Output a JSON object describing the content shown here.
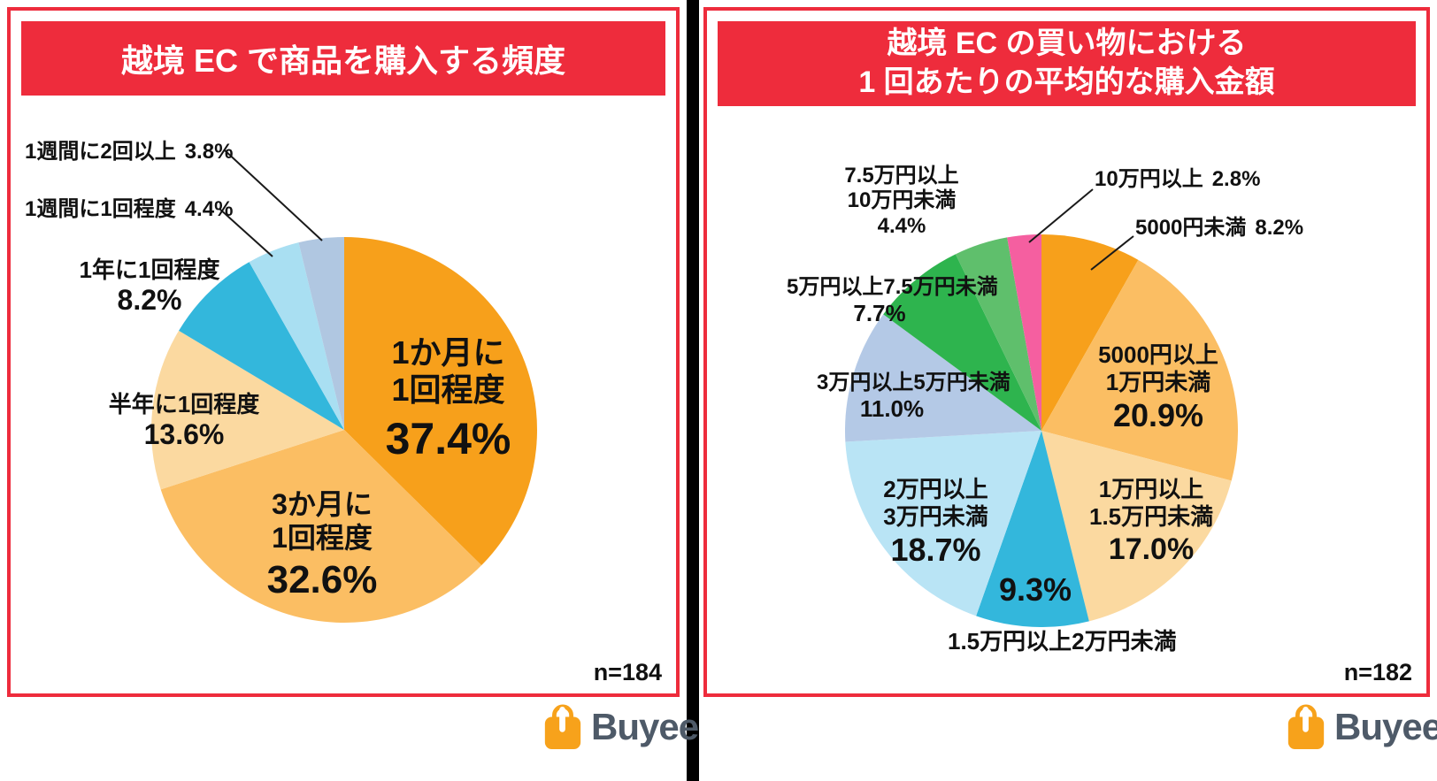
{
  "logo": {
    "text": "Buyee"
  },
  "chart_data": [
    {
      "type": "pie",
      "title": "越境 EC で商品を購入する頻度",
      "n": "n=184",
      "start_angle": "top",
      "direction": "clockwise",
      "slices": [
        {
          "key": "monthly",
          "label": "1か月に1回程度",
          "label_lines": [
            "1か月に",
            "1回程度"
          ],
          "pct": "37.4%",
          "value": 37.4,
          "color": "#F7A01B"
        },
        {
          "key": "quarterly",
          "label": "3か月に1回程度",
          "label_lines": [
            "3か月に",
            "1回程度"
          ],
          "pct": "32.6%",
          "value": 32.6,
          "color": "#FBBE63"
        },
        {
          "key": "half-year",
          "label": "半年に1回程度",
          "pct": "13.6%",
          "value": 13.6,
          "color": "#FBD9A0"
        },
        {
          "key": "yearly",
          "label": "1年に1回程度",
          "pct": "8.2%",
          "value": 8.2,
          "color": "#33B7DC"
        },
        {
          "key": "weekly",
          "label": "1週間に1回程度",
          "pct": "4.4%",
          "value": 4.4,
          "color": "#A9DFF2"
        },
        {
          "key": "twice-weekly",
          "label": "1週間に2回以上",
          "pct": "3.8%",
          "value": 3.8,
          "color": "#B0C7E1"
        }
      ]
    },
    {
      "type": "pie",
      "title": "越境 EC の買い物における 1 回あたりの平均的な購入金額",
      "title_lines": [
        "越境 EC の買い物における",
        "1 回あたりの平均的な購入金額"
      ],
      "n": "n=182",
      "start_angle": "top",
      "direction": "clockwise",
      "slices": [
        {
          "key": "under-5000",
          "label": "5000円未満",
          "pct": "8.2%",
          "value": 8.2,
          "color": "#F7A01B"
        },
        {
          "key": "5000-10k",
          "label": "5000円以上1万円未満",
          "label_lines": [
            "5000円以上",
            "1万円未満"
          ],
          "pct": "20.9%",
          "value": 20.9,
          "color": "#FBBE63"
        },
        {
          "key": "10k-15k",
          "label": "1万円以上1.5万円未満",
          "label_lines": [
            "1万円以上",
            "1.5万円未満"
          ],
          "pct": "17.0%",
          "value": 17.0,
          "color": "#FBD9A0"
        },
        {
          "key": "15k-20k",
          "label": "1.5万円以上2万円未満",
          "pct": "9.3%",
          "value": 9.3,
          "color": "#33B7DC"
        },
        {
          "key": "20k-30k",
          "label": "2万円以上3万円未満",
          "label_lines": [
            "2万円以上",
            "3万円未満"
          ],
          "pct": "18.7%",
          "value": 18.7,
          "color": "#B9E4F5"
        },
        {
          "key": "30k-50k",
          "label": "3万円以上5万円未満",
          "pct": "11.0%",
          "value": 11.0,
          "color": "#B4C9E6"
        },
        {
          "key": "50k-75k",
          "label": "5万円以上7.5万円未満",
          "pct": "7.7%",
          "value": 7.7,
          "color": "#2EB44E"
        },
        {
          "key": "75k-100k",
          "label": "7.5万円以上10万円未満",
          "label_lines": [
            "7.5万円以上",
            "10万円未満"
          ],
          "pct": "4.4%",
          "value": 4.4,
          "color": "#5FBF6C"
        },
        {
          "key": "over-100k",
          "label": "10万円以上",
          "pct": "2.8%",
          "value": 2.8,
          "color": "#F55FA0"
        }
      ]
    }
  ]
}
